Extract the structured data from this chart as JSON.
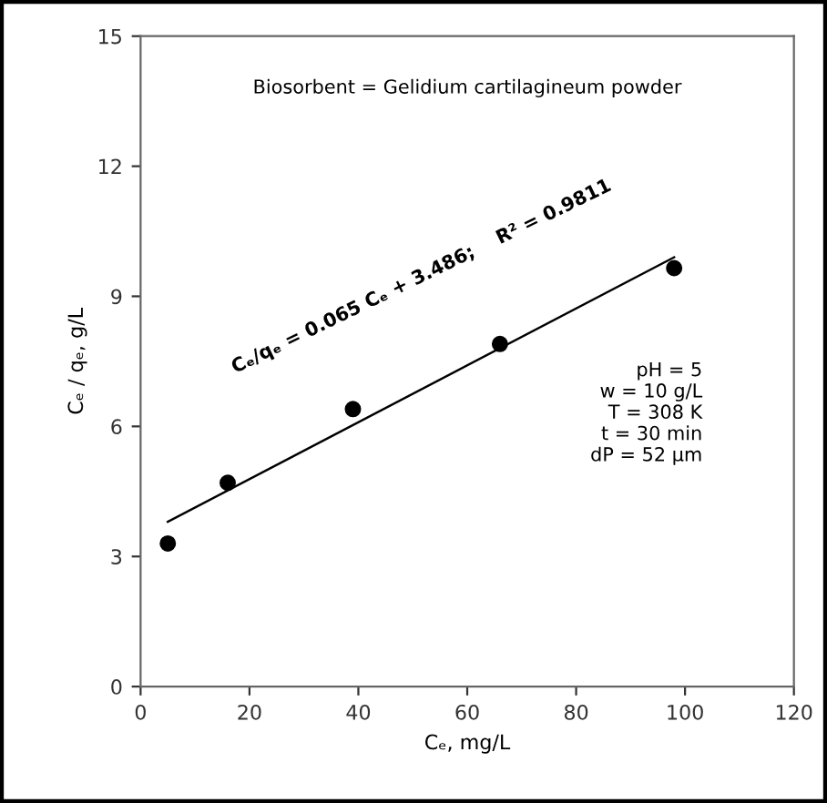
{
  "chart_data": {
    "type": "scatter",
    "xlabel": "Cₑ, mg/L",
    "ylabel": "Cₑ / qₑ, g/L",
    "xlim": [
      0,
      120
    ],
    "xticks": [
      0,
      20,
      40,
      60,
      80,
      100,
      120
    ],
    "ylim": [
      0,
      15
    ],
    "yticks": [
      0,
      3,
      6,
      9,
      12,
      15
    ],
    "grid": false,
    "marker": "circle",
    "series": [
      {
        "color": "#000000",
        "x": [
          5,
          16,
          39,
          66,
          98
        ],
        "values": [
          3.3,
          4.7,
          6.4,
          7.9,
          9.65
        ]
      },
      {
        "type": "line",
        "color": "#000000",
        "line_style": "solid",
        "marker": "none",
        "x": [
          5,
          98
        ],
        "values": [
          3.8,
          9.9
        ]
      }
    ],
    "annotations": [
      "Biosorbent = Gelidium cartilagineum powder",
      "Cₑ/qₑ = 0.065 Cₑ + 3.486;    R² = 0.9811",
      "pH = 5\nw = 10 g/L\nT = 308 K\nt = 30 min\ndP = 52 µm"
    ]
  }
}
